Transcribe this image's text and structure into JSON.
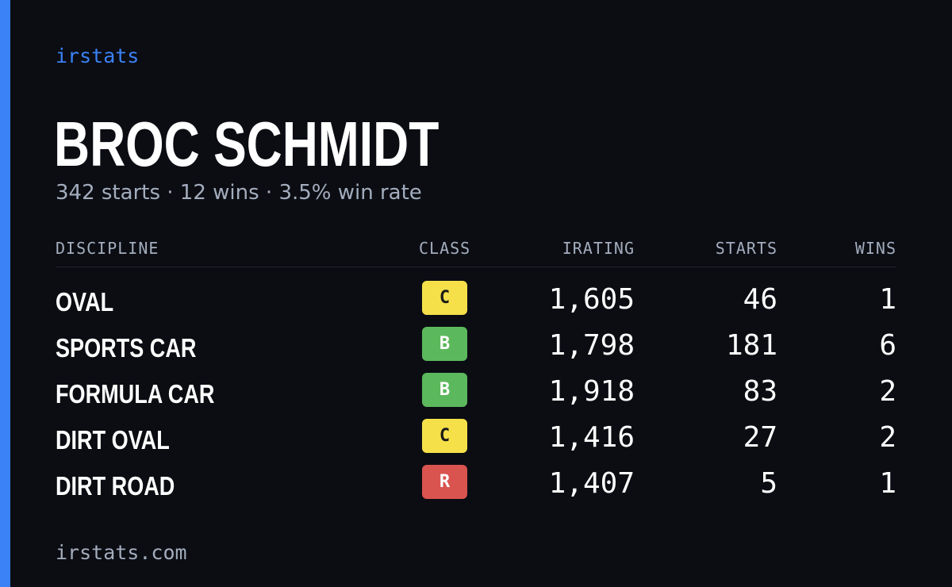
{
  "brand": "irstats",
  "driver": {
    "name": "BROC SCHMIDT",
    "summary": "342 starts · 12 wins · 3.5% win rate"
  },
  "table": {
    "headers": {
      "discipline": "DISCIPLINE",
      "class": "CLASS",
      "irating": "IRATING",
      "starts": "STARTS",
      "wins": "WINS"
    },
    "rows": [
      {
        "discipline": "OVAL",
        "class": "C",
        "class_color": "#f5e04a",
        "class_text_color": "#1a1a1a",
        "irating": "1,605",
        "starts": "46",
        "wins": "1"
      },
      {
        "discipline": "SPORTS CAR",
        "class": "B",
        "class_color": "#5cb85c",
        "class_text_color": "#ffffff",
        "irating": "1,798",
        "starts": "181",
        "wins": "6"
      },
      {
        "discipline": "FORMULA CAR",
        "class": "B",
        "class_color": "#5cb85c",
        "class_text_color": "#ffffff",
        "irating": "1,918",
        "starts": "83",
        "wins": "2"
      },
      {
        "discipline": "DIRT OVAL",
        "class": "C",
        "class_color": "#f5e04a",
        "class_text_color": "#1a1a1a",
        "irating": "1,416",
        "starts": "27",
        "wins": "2"
      },
      {
        "discipline": "DIRT ROAD",
        "class": "R",
        "class_color": "#d9534f",
        "class_text_color": "#ffffff",
        "irating": "1,407",
        "starts": "5",
        "wins": "1"
      }
    ]
  },
  "footer": "irstats.com",
  "colors": {
    "accent": "#3b82f6",
    "background": "#0b0d13",
    "muted_text": "#a3adbd"
  }
}
